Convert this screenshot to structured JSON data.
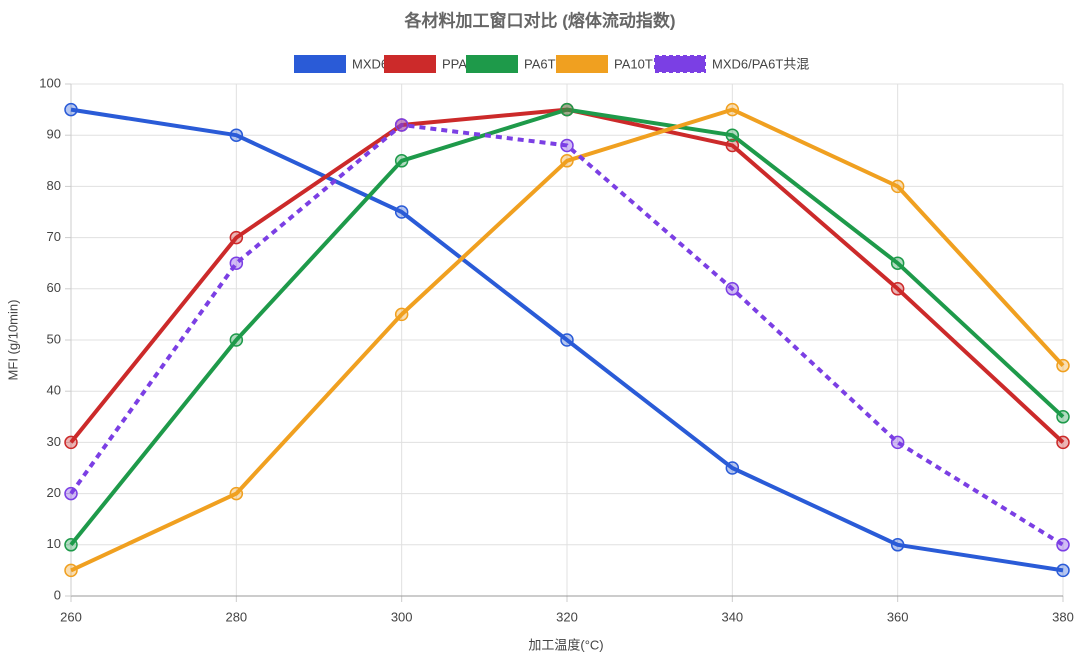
{
  "chart_data": {
    "type": "line",
    "title": "各材料加工窗口对比 (熔体流动指数)",
    "x_label": "加工温度(°C)",
    "y_label": "MFI (g/10min)",
    "x": [
      260,
      280,
      300,
      320,
      340,
      360,
      380
    ],
    "xlim": [
      260,
      380
    ],
    "xticks": [
      260,
      280,
      300,
      320,
      340,
      360,
      380
    ],
    "ylim": [
      0,
      100
    ],
    "yticks": [
      0,
      10,
      20,
      30,
      40,
      50,
      60,
      70,
      80,
      90,
      100
    ],
    "grid": true,
    "legend": "top",
    "series": [
      {
        "name": "MXD6",
        "color": "#2a5bd7",
        "values": [
          95,
          90,
          75,
          50,
          25,
          10,
          5
        ]
      },
      {
        "name": "PPA",
        "color": "#cc2a2a",
        "values": [
          30,
          70,
          92,
          95,
          88,
          60,
          30
        ]
      },
      {
        "name": "PA6T",
        "color": "#1e9a4a",
        "values": [
          10,
          50,
          85,
          95,
          90,
          65,
          35
        ]
      },
      {
        "name": "PA10T",
        "color": "#f0a020",
        "values": [
          5,
          20,
          55,
          85,
          95,
          80,
          45
        ]
      },
      {
        "name": "MXD6/PA6T共混",
        "color": "#7b3fe4",
        "dashed": true,
        "values": [
          20,
          65,
          92,
          88,
          60,
          30,
          10
        ]
      }
    ]
  }
}
